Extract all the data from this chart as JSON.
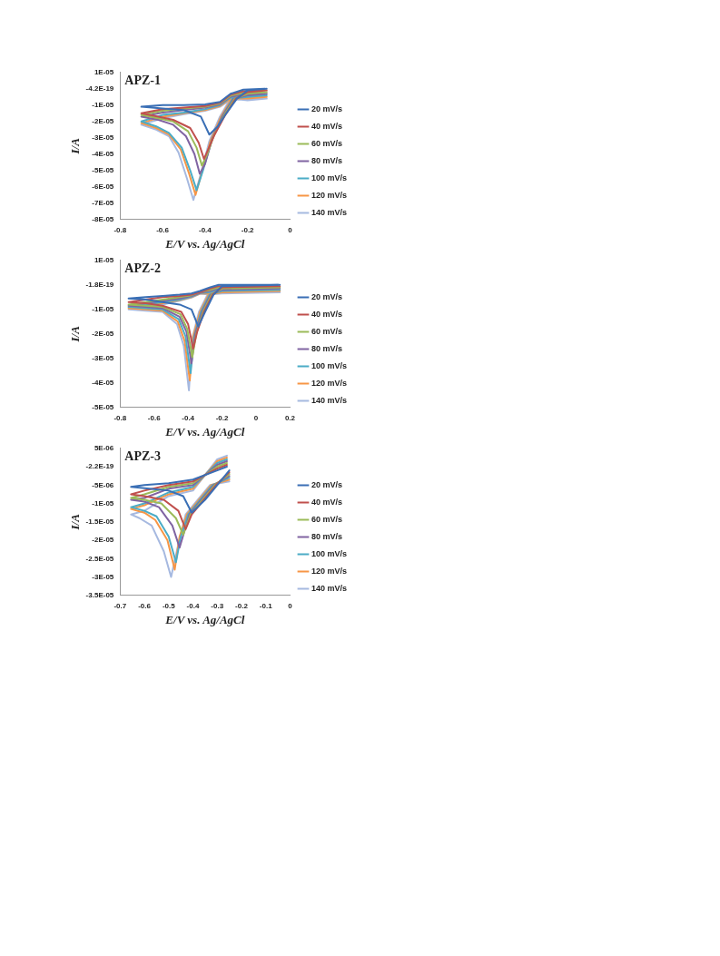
{
  "chart_data": [
    {
      "type": "line",
      "title": "APZ-1",
      "xlabel": "E/V vs. Ag/AgCl",
      "ylabel": "I/A",
      "xlim": [
        -0.8,
        0
      ],
      "xticks": [
        -0.8,
        -0.6,
        -0.4,
        -0.2,
        0
      ],
      "ylim": [
        -8e-05,
        1e-05
      ],
      "yticks": [
        {
          "value": 1e-05,
          "label": "1E-05"
        },
        {
          "value": 0,
          "label": "-4.2E-19"
        },
        {
          "value": -1e-05,
          "label": "-1E-05"
        },
        {
          "value": -2e-05,
          "label": "-2E-05"
        },
        {
          "value": -3e-05,
          "label": "-3E-05"
        },
        {
          "value": -4e-05,
          "label": "-4E-05"
        },
        {
          "value": -5e-05,
          "label": "-5E-05"
        },
        {
          "value": -6e-05,
          "label": "-6E-05"
        },
        {
          "value": -7e-05,
          "label": "-7E-05"
        },
        {
          "value": -8e-05,
          "label": "-8E-05"
        }
      ],
      "grid": false,
      "legend": "right",
      "marker": "none",
      "line_style": "solid",
      "series": [
        {
          "name": "20 mV/s",
          "color": "#3a6fb5",
          "x": [
            -0.11,
            -0.2,
            -0.25,
            -0.3,
            -0.34,
            -0.38,
            -0.42,
            -0.5,
            -0.6,
            -0.7,
            -0.6,
            -0.5,
            -0.4,
            -0.33,
            -0.28,
            -0.22,
            -0.12
          ],
          "values": [
            0,
            -1e-06,
            -6e-06,
            -1.5e-05,
            -2.3e-05,
            -2.8e-05,
            -1.7e-05,
            -1.3e-05,
            -1.2e-05,
            -1.1e-05,
            -1e-05,
            -1e-05,
            -9.5e-06,
            -8e-06,
            -3e-06,
            -5e-07,
            0
          ]
        },
        {
          "name": "40 mV/s",
          "color": "#c0504d",
          "x": [
            -0.11,
            -0.2,
            -0.255,
            -0.305,
            -0.355,
            -0.385,
            -0.405,
            -0.43,
            -0.47,
            -0.55,
            -0.62,
            -0.7,
            -0.6,
            -0.5,
            -0.4,
            -0.33,
            -0.28,
            -0.22,
            -0.12
          ],
          "values": [
            -1e-06,
            -2e-06,
            -6e-06,
            -1.6e-05,
            -2.8e-05,
            -3.7e-05,
            -4.3e-05,
            -3.3e-05,
            -2.4e-05,
            -1.9e-05,
            -1.7e-05,
            -1.5e-05,
            -1.25e-05,
            -1.15e-05,
            -1.05e-05,
            -8.5e-06,
            -3.6e-06,
            -1.5e-06,
            -1e-06
          ]
        },
        {
          "name": "60 mV/s",
          "color": "#9bbb59",
          "x": [
            -0.11,
            -0.2,
            -0.26,
            -0.31,
            -0.36,
            -0.39,
            -0.415,
            -0.44,
            -0.48,
            -0.55,
            -0.62,
            -0.7,
            -0.6,
            -0.5,
            -0.4,
            -0.33,
            -0.28,
            -0.22,
            -0.12
          ],
          "values": [
            -2e-06,
            -3e-06,
            -6e-06,
            -1.6e-05,
            -2.9e-05,
            -4e-05,
            -4.7e-05,
            -3.6e-05,
            -2.6e-05,
            -2e-05,
            -1.8e-05,
            -1.6e-05,
            -1.35e-05,
            -1.2e-05,
            -1.1e-05,
            -9e-06,
            -4.2e-06,
            -2.5e-06,
            -2e-06
          ]
        },
        {
          "name": "80 mV/s",
          "color": "#8064a2",
          "x": [
            -0.11,
            -0.2,
            -0.265,
            -0.315,
            -0.365,
            -0.4,
            -0.425,
            -0.45,
            -0.49,
            -0.55,
            -0.62,
            -0.7,
            -0.6,
            -0.5,
            -0.4,
            -0.33,
            -0.28,
            -0.22,
            -0.12
          ],
          "values": [
            -3e-06,
            -4e-06,
            -6e-06,
            -1.6e-05,
            -3e-05,
            -4.6e-05,
            -5.2e-05,
            -4e-05,
            -2.9e-05,
            -2.2e-05,
            -1.9e-05,
            -1.7e-05,
            -1.45e-05,
            -1.3e-05,
            -1.15e-05,
            -9.5e-06,
            -4.8e-06,
            -3.5e-06,
            -3e-06
          ]
        },
        {
          "name": "100 mV/s",
          "color": "#4bacc6",
          "x": [
            -0.11,
            -0.2,
            -0.27,
            -0.32,
            -0.37,
            -0.41,
            -0.44,
            -0.47,
            -0.51,
            -0.57,
            -0.63,
            -0.7,
            -0.6,
            -0.5,
            -0.4,
            -0.33,
            -0.28,
            -0.22,
            -0.12
          ],
          "values": [
            -4e-06,
            -5e-06,
            -6e-06,
            -1.7e-05,
            -3.2e-05,
            -5e-05,
            -6.2e-05,
            -5e-05,
            -3.6e-05,
            -2.7e-05,
            -2.3e-05,
            -2e-05,
            -1.6e-05,
            -1.45e-05,
            -1.25e-05,
            -1e-05,
            -5.4e-06,
            -4.5e-06,
            -4e-06
          ]
        },
        {
          "name": "120 mV/s",
          "color": "#f79646",
          "x": [
            -0.11,
            -0.2,
            -0.275,
            -0.325,
            -0.375,
            -0.415,
            -0.445,
            -0.475,
            -0.515,
            -0.57,
            -0.63,
            -0.7,
            -0.6,
            -0.5,
            -0.4,
            -0.33,
            -0.28,
            -0.22,
            -0.12
          ],
          "values": [
            -5e-06,
            -6e-06,
            -6e-06,
            -1.7e-05,
            -3.2e-05,
            -5.1e-05,
            -6.5e-05,
            -5.2e-05,
            -3.7e-05,
            -2.8e-05,
            -2.4e-05,
            -2.1e-05,
            -1.7e-05,
            -1.5e-05,
            -1.3e-05,
            -1.05e-05,
            -6e-06,
            -5.5e-06,
            -5e-06
          ]
        },
        {
          "name": "140 mV/s",
          "color": "#a6b9e0",
          "x": [
            -0.11,
            -0.2,
            -0.28,
            -0.33,
            -0.38,
            -0.42,
            -0.455,
            -0.485,
            -0.525,
            -0.57,
            -0.63,
            -0.7,
            -0.6,
            -0.5,
            -0.4,
            -0.33,
            -0.28,
            -0.22,
            -0.12
          ],
          "values": [
            -6e-06,
            -7e-06,
            -6e-06,
            -1.7e-05,
            -3.2e-05,
            -5.2e-05,
            -6.8e-05,
            -5.5e-05,
            -3.9e-05,
            -2.9e-05,
            -2.5e-05,
            -2.2e-05,
            -1.8e-05,
            -1.55e-05,
            -1.35e-05,
            -1.1e-05,
            -6.6e-06,
            -6.5e-06,
            -6e-06
          ]
        }
      ]
    },
    {
      "type": "line",
      "title": "APZ-2",
      "xlabel": "E/V vs. Ag/AgCl",
      "ylabel": "I/A",
      "xlim": [
        -0.8,
        0.2
      ],
      "xticks": [
        -0.8,
        -0.6,
        -0.4,
        -0.2,
        0,
        0.2
      ],
      "ylim": [
        -5e-05,
        1e-05
      ],
      "yticks": [
        {
          "value": 1e-05,
          "label": "1E-05"
        },
        {
          "value": 0,
          "label": "-1.8E-19"
        },
        {
          "value": -1e-05,
          "label": "-1E-05"
        },
        {
          "value": -2e-05,
          "label": "-2E-05"
        },
        {
          "value": -3e-05,
          "label": "-3E-05"
        },
        {
          "value": -4e-05,
          "label": "-4E-05"
        },
        {
          "value": -5e-05,
          "label": "-5E-05"
        }
      ],
      "grid": false,
      "legend": "right",
      "marker": "none",
      "line_style": "solid",
      "series": [
        {
          "name": "20 mV/s",
          "color": "#3a6fb5",
          "x": [
            0.14,
            -0.2,
            -0.25,
            -0.3,
            -0.34,
            -0.38,
            -0.45,
            -0.55,
            -0.65,
            -0.75,
            -0.65,
            -0.55,
            -0.45,
            -0.38,
            -0.33,
            -0.27,
            -0.22,
            0.13
          ],
          "values": [
            0,
            -5e-07,
            -4e-06,
            -1.1e-05,
            -1.7e-05,
            -1e-05,
            -8e-06,
            -7e-06,
            -6e-06,
            -5.5e-06,
            -5e-06,
            -4.5e-06,
            -4e-06,
            -3.5e-06,
            -2.5e-06,
            -1e-06,
            0,
            0
          ]
        },
        {
          "name": "40 mV/s",
          "color": "#c0504d",
          "x": [
            0.14,
            -0.2,
            -0.256,
            -0.306,
            -0.346,
            -0.37,
            -0.4,
            -0.44,
            -0.55,
            -0.65,
            -0.75,
            -0.65,
            -0.55,
            -0.45,
            -0.38,
            -0.33,
            -0.27,
            -0.22,
            0.13
          ],
          "values": [
            -5e-07,
            -1e-06,
            -4e-06,
            -1.1e-05,
            -1.9e-05,
            -2.6e-05,
            -1.6e-05,
            -1.1e-05,
            -8.5e-06,
            -7.5e-06,
            -7e-06,
            -6e-06,
            -5e-06,
            -4.5e-06,
            -4e-06,
            -3e-06,
            -1.5e-06,
            -5e-07,
            -5e-07
          ]
        },
        {
          "name": "60 mV/s",
          "color": "#9bbb59",
          "x": [
            0.14,
            -0.2,
            -0.262,
            -0.312,
            -0.352,
            -0.375,
            -0.405,
            -0.445,
            -0.55,
            -0.65,
            -0.75,
            -0.65,
            -0.55,
            -0.45,
            -0.38,
            -0.33,
            -0.27,
            -0.22,
            0.13
          ],
          "values": [
            -1e-06,
            -1.5e-06,
            -4e-06,
            -1.1e-05,
            -2e-05,
            -2.95e-05,
            -1.8e-05,
            -1.2e-05,
            -9e-06,
            -8.5e-06,
            -8e-06,
            -7e-06,
            -6e-06,
            -5e-06,
            -4.2e-06,
            -3e-06,
            -2e-06,
            -1e-06,
            -1e-06
          ]
        },
        {
          "name": "80 mV/s",
          "color": "#8064a2",
          "x": [
            0.14,
            -0.2,
            -0.268,
            -0.318,
            -0.358,
            -0.38,
            -0.41,
            -0.45,
            -0.55,
            -0.65,
            -0.75,
            -0.65,
            -0.55,
            -0.45,
            -0.38,
            -0.33,
            -0.27,
            -0.22,
            0.13
          ],
          "values": [
            -1.5e-06,
            -2e-06,
            -4e-06,
            -1.1e-05,
            -2e-05,
            -3.2e-05,
            -1.9e-05,
            -1.3e-05,
            -9.5e-06,
            -9e-06,
            -8.5e-06,
            -7.5e-06,
            -6.5e-06,
            -5.5e-06,
            -4.5e-06,
            -3.2e-06,
            -2.5e-06,
            -1.5e-06,
            -1.5e-06
          ]
        },
        {
          "name": "100 mV/s",
          "color": "#4bacc6",
          "x": [
            0.14,
            -0.2,
            -0.274,
            -0.324,
            -0.364,
            -0.385,
            -0.415,
            -0.455,
            -0.55,
            -0.65,
            -0.75,
            -0.65,
            -0.55,
            -0.45,
            -0.38,
            -0.33,
            -0.27,
            -0.22,
            0.13
          ],
          "values": [
            -2e-06,
            -2.5e-06,
            -4e-06,
            -1.1e-05,
            -2.1e-05,
            -3.6e-05,
            -2.1e-05,
            -1.4e-05,
            -1e-05,
            -9.5e-06,
            -9e-06,
            -8e-06,
            -7e-06,
            -6e-06,
            -4.8e-06,
            -3.3e-06,
            -3e-06,
            -2e-06,
            -2e-06
          ]
        },
        {
          "name": "120 mV/s",
          "color": "#f79646",
          "x": [
            0.14,
            -0.2,
            -0.28,
            -0.33,
            -0.37,
            -0.39,
            -0.42,
            -0.46,
            -0.55,
            -0.65,
            -0.75,
            -0.65,
            -0.55,
            -0.45,
            -0.38,
            -0.33,
            -0.27,
            -0.22,
            0.13
          ],
          "values": [
            -2.5e-06,
            -3e-06,
            -4e-06,
            -1.1e-05,
            -2.1e-05,
            -3.9e-05,
            -2.3e-05,
            -1.5e-05,
            -1.05e-05,
            -1e-05,
            -9.5e-06,
            -8.5e-06,
            -7.5e-06,
            -6.2e-06,
            -5e-06,
            -3.5e-06,
            -3.5e-06,
            -2.5e-06,
            -2.5e-06
          ]
        },
        {
          "name": "140 mV/s",
          "color": "#a6b9e0",
          "x": [
            0.14,
            -0.2,
            -0.286,
            -0.336,
            -0.376,
            -0.395,
            -0.425,
            -0.465,
            -0.55,
            -0.65,
            -0.75,
            -0.65,
            -0.55,
            -0.45,
            -0.38,
            -0.33,
            -0.27,
            -0.22,
            0.13
          ],
          "values": [
            -3e-06,
            -3.5e-06,
            -4e-06,
            -1.1e-05,
            -2.2e-05,
            -4.3e-05,
            -2.5e-05,
            -1.6e-05,
            -1.1e-05,
            -1.05e-05,
            -1e-05,
            -9e-06,
            -8e-06,
            -6.5e-06,
            -5.2e-06,
            -3.6e-06,
            -4e-06,
            -3e-06,
            -3e-06
          ]
        }
      ]
    },
    {
      "type": "line",
      "title": "APZ-3",
      "xlabel": "E/V vs. Ag/AgCl",
      "ylabel": "I/A",
      "xlim": [
        -0.7,
        0
      ],
      "xticks": [
        -0.7,
        -0.6,
        -0.5,
        -0.4,
        -0.3,
        -0.2,
        -0.1,
        0
      ],
      "ylim": [
        -3.5e-05,
        5e-06
      ],
      "yticks": [
        {
          "value": 5e-06,
          "label": "5E-06"
        },
        {
          "value": 0,
          "label": "-2.2E-19"
        },
        {
          "value": -5e-06,
          "label": "-5E-06"
        },
        {
          "value": -1e-05,
          "label": "-1E-05"
        },
        {
          "value": -1.5e-05,
          "label": "-1.5E-05"
        },
        {
          "value": -2e-05,
          "label": "-2E-05"
        },
        {
          "value": -2.5e-05,
          "label": "-2.5E-05"
        },
        {
          "value": -3e-05,
          "label": "-3E-05"
        },
        {
          "value": -3.5e-05,
          "label": "-3.5E-05"
        }
      ],
      "grid": false,
      "legend": "right",
      "marker": "none",
      "line_style": "solid",
      "series": [
        {
          "name": "20 mV/s",
          "color": "#3a6fb5",
          "x": [
            -0.25,
            -0.3,
            -0.35,
            -0.405,
            -0.44,
            -0.5,
            -0.58,
            -0.655,
            -0.6,
            -0.5,
            -0.4,
            -0.3,
            -0.26
          ],
          "values": [
            -1e-06,
            -5e-06,
            -9e-06,
            -1.25e-05,
            -8e-06,
            -6.5e-06,
            -6e-06,
            -5.5e-06,
            -5e-06,
            -4.5e-06,
            -3.5e-06,
            -1e-06,
            0
          ]
        },
        {
          "name": "40 mV/s",
          "color": "#c0504d",
          "x": [
            -0.25,
            -0.305,
            -0.355,
            -0.405,
            -0.43,
            -0.46,
            -0.52,
            -0.6,
            -0.655,
            -0.6,
            -0.5,
            -0.4,
            -0.3,
            -0.26
          ],
          "values": [
            -1.5e-06,
            -5e-06,
            -9e-06,
            -1.3e-05,
            -1.7e-05,
            -1.2e-05,
            -9e-06,
            -8e-06,
            -7.5e-06,
            -6.5e-06,
            -5e-06,
            -4e-06,
            -5e-07,
            5e-07
          ]
        },
        {
          "name": "60 mV/s",
          "color": "#9bbb59",
          "x": [
            -0.25,
            -0.31,
            -0.36,
            -0.41,
            -0.44,
            -0.47,
            -0.53,
            -0.6,
            -0.655,
            -0.6,
            -0.5,
            -0.4,
            -0.3,
            -0.26
          ],
          "values": [
            -2e-06,
            -5e-06,
            -9e-06,
            -1.3e-05,
            -1.85e-05,
            -1.4e-05,
            -1e-05,
            -9e-06,
            -8.5e-06,
            -7.5e-06,
            -5.5e-06,
            -4.5e-06,
            0,
            1e-06
          ]
        },
        {
          "name": "80 mV/s",
          "color": "#8064a2",
          "x": [
            -0.25,
            -0.315,
            -0.365,
            -0.415,
            -0.455,
            -0.485,
            -0.54,
            -0.6,
            -0.655,
            -0.6,
            -0.5,
            -0.4,
            -0.3,
            -0.26
          ],
          "values": [
            -2.5e-06,
            -5e-06,
            -9e-06,
            -1.3e-05,
            -2.2e-05,
            -1.6e-05,
            -1.1e-05,
            -9.5e-06,
            -9e-06,
            -8.5e-06,
            -6e-06,
            -5e-06,
            5e-07,
            1.5e-06
          ]
        },
        {
          "name": "100 mV/s",
          "color": "#4bacc6",
          "x": [
            -0.25,
            -0.32,
            -0.37,
            -0.42,
            -0.45,
            -0.47,
            -0.5,
            -0.55,
            -0.6,
            -0.655,
            -0.6,
            -0.5,
            -0.4,
            -0.3,
            -0.26
          ],
          "values": [
            -3e-06,
            -5e-06,
            -9e-06,
            -1.3e-05,
            -1.9e-05,
            -2.6e-05,
            -1.9e-05,
            -1.35e-05,
            -1.2e-05,
            -1.1e-05,
            -1e-05,
            -7e-06,
            -5.5e-06,
            1e-06,
            2e-06
          ]
        },
        {
          "name": "120 mV/s",
          "color": "#f79646",
          "x": [
            -0.25,
            -0.325,
            -0.375,
            -0.425,
            -0.455,
            -0.475,
            -0.505,
            -0.555,
            -0.6,
            -0.655,
            -0.6,
            -0.5,
            -0.4,
            -0.3,
            -0.26
          ],
          "values": [
            -3.5e-06,
            -5e-06,
            -9e-06,
            -1.3e-05,
            -1.9e-05,
            -2.8e-05,
            -2e-05,
            -1.45e-05,
            -1.25e-05,
            -1.15e-05,
            -1.05e-05,
            -7.5e-06,
            -6e-06,
            1.5e-06,
            2.5e-06
          ]
        },
        {
          "name": "140 mV/s",
          "color": "#a6b9e0",
          "x": [
            -0.25,
            -0.33,
            -0.38,
            -0.43,
            -0.46,
            -0.49,
            -0.52,
            -0.57,
            -0.62,
            -0.655,
            -0.6,
            -0.5,
            -0.4,
            -0.3,
            -0.26
          ],
          "values": [
            -4e-06,
            -5e-06,
            -9e-06,
            -1.3e-05,
            -2.1e-05,
            -3e-05,
            -2.3e-05,
            -1.6e-05,
            -1.4e-05,
            -1.3e-05,
            -1.2e-05,
            -8e-06,
            -6.5e-06,
            2e-06,
            3e-06
          ]
        }
      ]
    }
  ]
}
